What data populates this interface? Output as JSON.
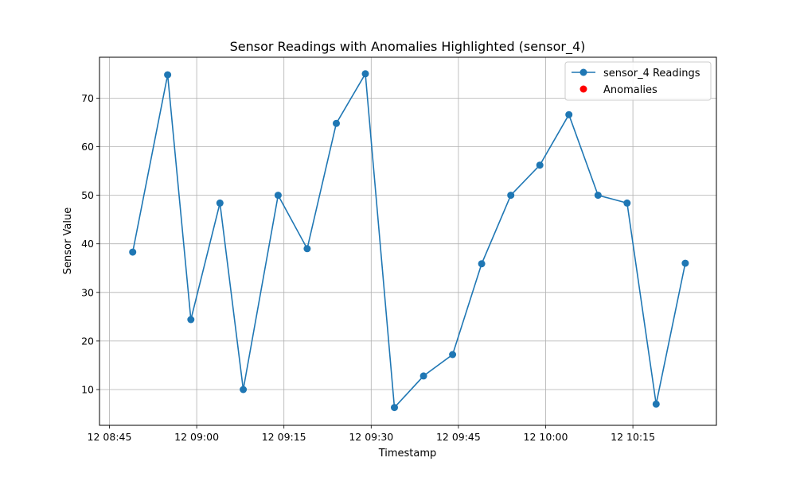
{
  "chart_data": {
    "type": "line",
    "title": "Sensor Readings with Anomalies Highlighted (sensor_4)",
    "xlabel": "Timestamp",
    "ylabel": "Sensor Value",
    "x_ticks": [
      "12 08:45",
      "12 09:00",
      "12 09:15",
      "12 09:30",
      "12 09:45",
      "12 10:00",
      "12 10:15"
    ],
    "y_ticks": [
      10,
      20,
      30,
      40,
      50,
      60,
      70
    ],
    "xlim": [
      "08:45",
      "10:24"
    ],
    "ylim": [
      3,
      78
    ],
    "grid": true,
    "legend_position": "top-right",
    "series": [
      {
        "name": "sensor_4 Readings",
        "color": "#1f77b4",
        "marker": "circle",
        "x": [
          "08:49",
          "08:55",
          "08:59",
          "09:04",
          "09:08",
          "09:14",
          "09:19",
          "09:24",
          "09:29",
          "09:34",
          "09:39",
          "09:44",
          "09:49",
          "09:54",
          "09:59",
          "10:04",
          "10:09",
          "10:14",
          "10:19",
          "10:24"
        ],
        "values": [
          38.3,
          74.8,
          24.4,
          48.4,
          10.0,
          50.0,
          39.0,
          64.8,
          75.0,
          6.3,
          12.8,
          17.2,
          35.9,
          50.0,
          56.2,
          66.6,
          50.0,
          48.4,
          7.0,
          36.0
        ]
      },
      {
        "name": "Anomalies",
        "color": "#ff0000",
        "marker": "circle",
        "x": [],
        "values": []
      }
    ]
  }
}
